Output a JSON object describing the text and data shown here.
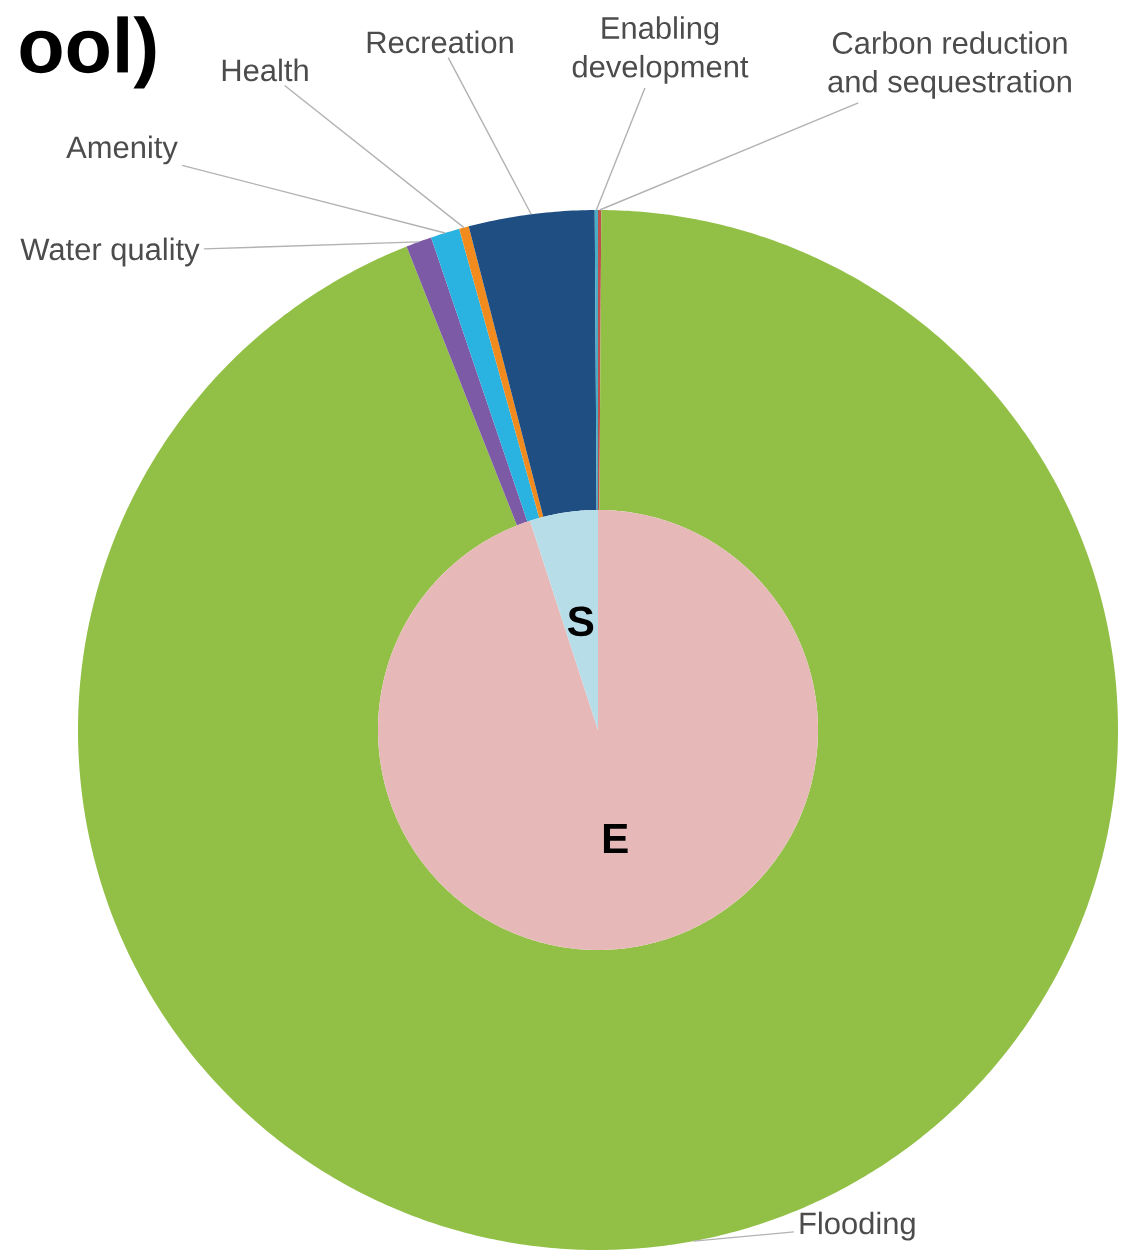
{
  "chart_data": [
    {
      "type": "donut",
      "title": "ool)",
      "categories": [
        "Carbon reduction and sequestration",
        "Flooding",
        "Water quality",
        "Amenity",
        "Health",
        "Recreation",
        "Enabling development"
      ],
      "values": [
        0.1,
        93.9,
        0.8,
        0.9,
        0.3,
        3.9,
        0.1
      ],
      "colors": [
        "#c0504d",
        "#92c047",
        "#7d5aa6",
        "#2ab3e0",
        "#f28b1e",
        "#1f4e82",
        "#4bacc6"
      ]
    },
    {
      "type": "pie",
      "categories": [
        "E",
        "S"
      ],
      "values": [
        95,
        5
      ],
      "colors": [
        "#e6b9b8",
        "#b7dee8"
      ]
    }
  ]
}
